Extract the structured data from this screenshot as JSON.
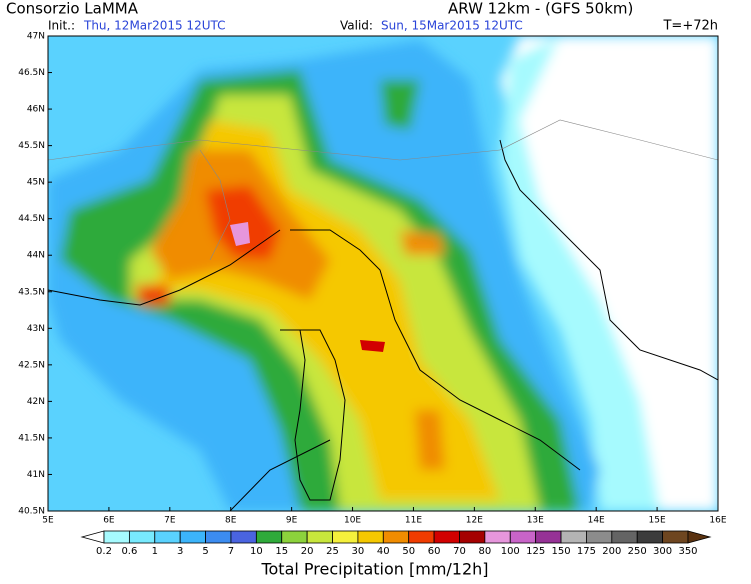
{
  "header": {
    "title": "Consorzio LaMMA",
    "model": "ARW 12km - (GFS 50km)",
    "init_label": "Init.:",
    "init": "Thu, 12Mar2015 12UTC",
    "valid_label": "Valid:",
    "valid": "Sun, 15Mar2015 12UTC",
    "lead": "T=+72h"
  },
  "axes": {
    "lat_labels": [
      "47N",
      "46.5N",
      "46N",
      "45.5N",
      "45N",
      "44.5N",
      "44N",
      "43.5N",
      "43N",
      "42.5N",
      "42N",
      "41.5N",
      "41N",
      "40.5N"
    ],
    "lon_labels": [
      "5E",
      "6E",
      "7E",
      "8E",
      "9E",
      "10E",
      "11E",
      "12E",
      "13E",
      "14E",
      "15E",
      "16E"
    ]
  },
  "legend": {
    "title": "Total Precipitation [mm/12h]",
    "levels": [
      0.2,
      0.6,
      1,
      3,
      5,
      7,
      10,
      15,
      20,
      25,
      30,
      40,
      50,
      60,
      70,
      80,
      100,
      125,
      150,
      175,
      200,
      250,
      300,
      350
    ],
    "colors": [
      "#ffffff",
      "#a6fafe",
      "#78eafe",
      "#5ad2fe",
      "#3cb4fa",
      "#3c8cf0",
      "#4a64e0",
      "#2faa3a",
      "#8cd23c",
      "#c8e63c",
      "#f5f03c",
      "#f5c800",
      "#f08c00",
      "#f03c00",
      "#d20000",
      "#a50000",
      "#e696dc",
      "#c864c8",
      "#963296",
      "#b4b4b4",
      "#8c8c8c",
      "#646464",
      "#3c3c3c",
      "#6e4620",
      "#5a3210"
    ]
  }
}
